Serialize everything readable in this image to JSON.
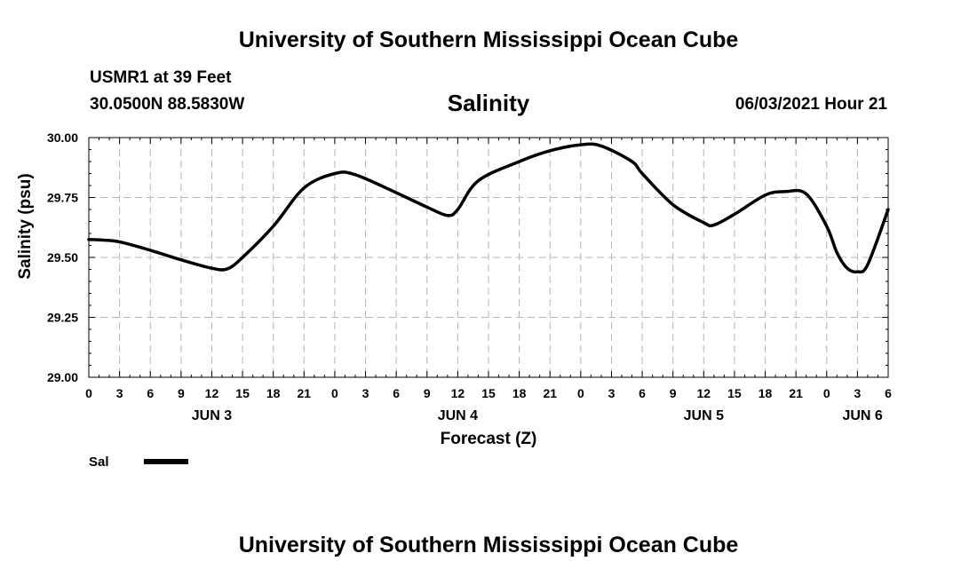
{
  "header": {
    "title": "University of Southern Mississippi Ocean Cube",
    "station": "USMR1 at 39 Feet",
    "coords": "30.0500N  88.5830W",
    "variable": "Salinity",
    "datetime": "06/03/2021 Hour 21"
  },
  "footer": {
    "title": "University of Southern Mississippi Ocean Cube"
  },
  "chart_data": {
    "type": "line",
    "ylabel": "Salinity (psu)",
    "xlabel": "Forecast (Z)",
    "ylim": [
      29.0,
      30.0
    ],
    "xlim": [
      0,
      78
    ],
    "grid": true,
    "y_ticks": [
      "29.00",
      "29.25",
      "29.50",
      "29.75",
      "30.00"
    ],
    "x_tick_labels": [
      "0",
      "3",
      "6",
      "9",
      "12",
      "15",
      "18",
      "21",
      "0",
      "3",
      "6",
      "9",
      "12",
      "15",
      "18",
      "21",
      "0",
      "3",
      "6",
      "9",
      "12",
      "15",
      "18",
      "21",
      "0",
      "3",
      "6"
    ],
    "day_labels": [
      {
        "label": "JUN 3",
        "hour": 12
      },
      {
        "label": "JUN 4",
        "hour": 36
      },
      {
        "label": "JUN 5",
        "hour": 60
      },
      {
        "label": "JUN 6",
        "hour": 75.5
      }
    ],
    "legend": [
      {
        "name": "Sal",
        "color": "#000000"
      }
    ],
    "series": [
      {
        "name": "Sal",
        "color": "#000000",
        "x": [
          0,
          1.5,
          3,
          6,
          9,
          12,
          13.5,
          15,
          18,
          21,
          24,
          26,
          30,
          33,
          35,
          36,
          38,
          42,
          45,
          48,
          50,
          53,
          54,
          57,
          60,
          61,
          63,
          66,
          68,
          70,
          72,
          73,
          74,
          75,
          76,
          78
        ],
        "values": [
          29.575,
          29.572,
          29.565,
          29.53,
          29.49,
          29.455,
          29.452,
          29.5,
          29.63,
          29.79,
          29.85,
          29.845,
          29.77,
          29.71,
          29.675,
          29.7,
          29.82,
          29.9,
          29.945,
          29.97,
          29.965,
          29.9,
          29.85,
          29.72,
          29.645,
          29.635,
          29.68,
          29.76,
          29.775,
          29.765,
          29.63,
          29.52,
          29.455,
          29.44,
          29.47,
          29.7
        ]
      }
    ]
  }
}
